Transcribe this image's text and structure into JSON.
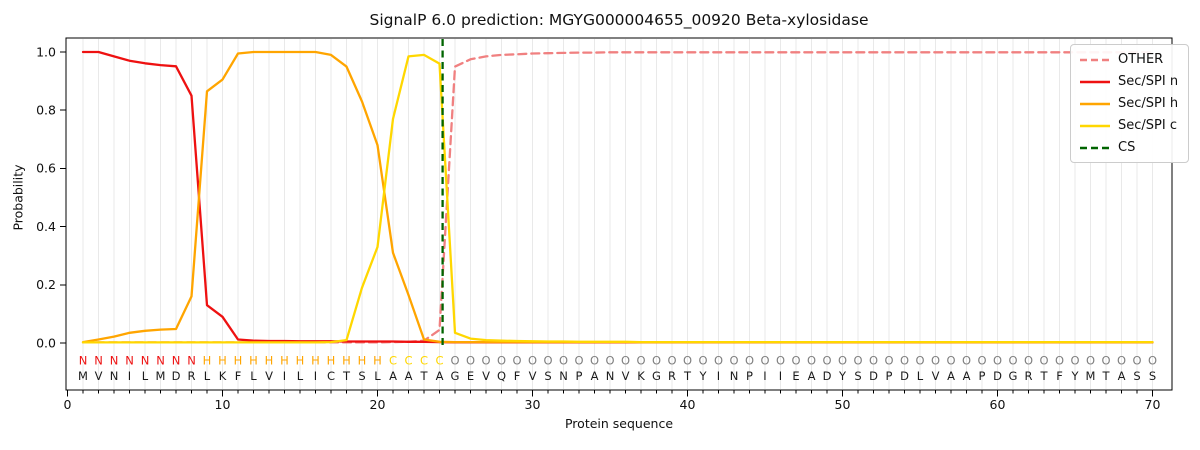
{
  "title": "SignalP 6.0 prediction: MGYG000004655_00920 Beta-xylosidase",
  "axes": {
    "x_label": "Protein sequence",
    "y_label": "Probability",
    "x_ticks": [
      0,
      10,
      20,
      30,
      40,
      50,
      60,
      70
    ],
    "y_ticks": [
      "0.0",
      "0.2",
      "0.4",
      "0.6",
      "0.8",
      "1.0"
    ]
  },
  "sequence": {
    "residues": "MVNILMDRLKFLVILICTSLAATAGEVQFVSNPANVKGRTYINPIIEADYSDPDLVAAPDGRTFYMTASS",
    "region_labels": "NNNNNNNNHHHHHHHHHHHHCCCCOOOOOOOOOOOOOOOOOOOOOOOOOOOOOOOOOOOOOOOOOOOOOO",
    "label_colors": {
      "N": "#ee1111",
      "H": "#ffa500",
      "C": "#ffd700",
      "O": "#7f7f7f"
    },
    "residue_color": "#1a1a1a"
  },
  "chart_data": {
    "type": "line",
    "x_start": 1,
    "x_end": 70,
    "xlim": [
      -0.1,
      71.4
    ],
    "ylim": [
      0,
      1.05
    ],
    "grid": "vertical-per-residue",
    "legend_position": "upper right",
    "series": [
      {
        "name": "OTHER",
        "color": "#f08080",
        "dash": "8 5",
        "values": [
          0.002,
          0.002,
          0.002,
          0.002,
          0.002,
          0.002,
          0.002,
          0.002,
          0.002,
          0.002,
          0.002,
          0.002,
          0.002,
          0.002,
          0.002,
          0.002,
          0.002,
          0.002,
          0.002,
          0.002,
          0.003,
          0.004,
          0.008,
          0.045,
          0.95,
          0.975,
          0.985,
          0.99,
          0.992,
          0.995,
          0.996,
          0.997,
          0.998,
          0.998,
          0.999,
          0.999,
          0.999,
          0.999,
          0.999,
          0.999,
          0.999,
          0.999,
          0.999,
          0.999,
          0.999,
          0.999,
          0.999,
          0.999,
          0.999,
          0.999,
          0.999,
          0.999,
          0.999,
          0.999,
          0.999,
          0.999,
          0.999,
          0.999,
          0.999,
          0.999,
          0.999,
          0.999,
          0.999,
          0.999,
          0.999,
          0.999,
          0.999,
          0.999,
          0.999,
          0.999
        ]
      },
      {
        "name": "Sec/SPI n",
        "color": "#ee1111",
        "dash": null,
        "values": [
          1.0,
          1.0,
          0.985,
          0.97,
          0.961,
          0.955,
          0.951,
          0.85,
          0.13,
          0.09,
          0.012,
          0.008,
          0.007,
          0.007,
          0.006,
          0.006,
          0.006,
          0.005,
          0.005,
          0.005,
          0.005,
          0.004,
          0.004,
          0.003,
          0.002,
          0.002,
          0.002,
          0.002,
          0.002,
          0.002,
          0.002,
          0.002,
          0.002,
          0.002,
          0.002,
          0.002,
          0.002,
          0.002,
          0.002,
          0.002,
          0.002,
          0.002,
          0.002,
          0.002,
          0.002,
          0.002,
          0.002,
          0.002,
          0.002,
          0.002,
          0.002,
          0.002,
          0.002,
          0.002,
          0.002,
          0.002,
          0.002,
          0.002,
          0.002,
          0.002,
          0.002,
          0.002,
          0.002,
          0.002,
          0.002,
          0.002,
          0.002,
          0.002,
          0.002,
          0.002
        ]
      },
      {
        "name": "Sec/SPI h",
        "color": "#ffa500",
        "dash": null,
        "values": [
          0.003,
          0.012,
          0.022,
          0.035,
          0.042,
          0.046,
          0.048,
          0.16,
          0.865,
          0.905,
          0.995,
          1.0,
          1.0,
          1.0,
          1.0,
          1.0,
          0.99,
          0.95,
          0.83,
          0.68,
          0.31,
          0.165,
          0.012,
          0.004,
          0.003,
          0.003,
          0.003,
          0.003,
          0.003,
          0.003,
          0.003,
          0.003,
          0.003,
          0.003,
          0.003,
          0.003,
          0.003,
          0.003,
          0.003,
          0.003,
          0.003,
          0.003,
          0.003,
          0.003,
          0.003,
          0.003,
          0.003,
          0.003,
          0.003,
          0.003,
          0.003,
          0.003,
          0.003,
          0.003,
          0.003,
          0.003,
          0.003,
          0.003,
          0.003,
          0.003,
          0.003,
          0.003,
          0.003,
          0.003,
          0.003,
          0.003,
          0.003,
          0.003,
          0.003,
          0.003
        ]
      },
      {
        "name": "Sec/SPI c",
        "color": "#ffd700",
        "dash": null,
        "values": [
          0.002,
          0.002,
          0.002,
          0.002,
          0.002,
          0.002,
          0.002,
          0.002,
          0.002,
          0.002,
          0.002,
          0.002,
          0.002,
          0.002,
          0.002,
          0.002,
          0.003,
          0.01,
          0.19,
          0.33,
          0.77,
          0.985,
          0.99,
          0.96,
          0.035,
          0.015,
          0.01,
          0.008,
          0.007,
          0.006,
          0.005,
          0.005,
          0.004,
          0.004,
          0.004,
          0.004,
          0.003,
          0.003,
          0.003,
          0.003,
          0.003,
          0.003,
          0.003,
          0.003,
          0.003,
          0.003,
          0.003,
          0.003,
          0.003,
          0.003,
          0.003,
          0.003,
          0.003,
          0.003,
          0.003,
          0.003,
          0.003,
          0.003,
          0.003,
          0.003,
          0.003,
          0.003,
          0.003,
          0.003,
          0.003,
          0.003,
          0.003,
          0.003,
          0.003,
          0.003
        ]
      }
    ],
    "cs_marker": {
      "label": "CS",
      "position": 24.2,
      "color": "#006400",
      "dash": "7 4.5"
    }
  },
  "legend": {
    "entries": [
      "OTHER",
      "Sec/SPI n",
      "Sec/SPI h",
      "Sec/SPI c",
      "CS"
    ]
  },
  "style": {
    "grid_color": "#e9e9e9",
    "spine_color": "#000000",
    "tick_label_color": "#111111"
  }
}
